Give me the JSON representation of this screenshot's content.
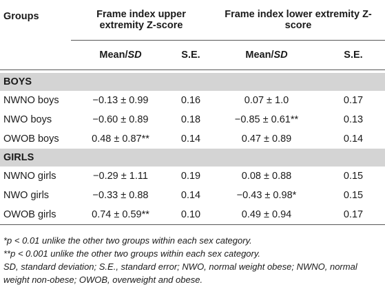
{
  "header": {
    "groups": "Groups",
    "upper": "Frame index upper extremity Z-score",
    "lower": "Frame index lower extremity Z-score",
    "mean_label": "Mean/",
    "sd_label": "SD",
    "se": "S.E."
  },
  "sections": [
    {
      "title": "BOYS",
      "rows": [
        {
          "group": "NWNO boys",
          "upper_mean": "−0.13 ± 0.99",
          "upper_se": "0.16",
          "lower_mean": "0.07 ± 1.0",
          "lower_se": "0.17"
        },
        {
          "group": "NWO boys",
          "upper_mean": "−0.60 ± 0.89",
          "upper_se": "0.18",
          "lower_mean": "−0.85 ± 0.61**",
          "lower_se": "0.13"
        },
        {
          "group": "OWOB boys",
          "upper_mean": "0.48 ± 0.87**",
          "upper_se": "0.14",
          "lower_mean": "0.47 ± 0.89",
          "lower_se": "0.14"
        }
      ]
    },
    {
      "title": "GIRLS",
      "rows": [
        {
          "group": "NWNO girls",
          "upper_mean": "−0.29 ± 1.11",
          "upper_se": "0.19",
          "lower_mean": "0.08 ± 0.88",
          "lower_se": "0.15"
        },
        {
          "group": "NWO girls",
          "upper_mean": "−0.33 ± 0.88",
          "upper_se": "0.14",
          "lower_mean": "−0.43 ± 0.98*",
          "lower_se": "0.15"
        },
        {
          "group": "OWOB girls",
          "upper_mean": "0.74 ± 0.59**",
          "upper_se": "0.10",
          "lower_mean": "0.49 ± 0.94",
          "lower_se": "0.17"
        }
      ]
    }
  ],
  "notes": {
    "n1": "*p < 0.01 unlike the other two groups within each sex category.",
    "n2": "**p < 0.001 unlike the other two groups within each sex category.",
    "n3": "SD, standard deviation; S.E., standard error; NWO, normal weight obese; NWNO, normal weight non-obese; OWOB, overweight and obese."
  }
}
